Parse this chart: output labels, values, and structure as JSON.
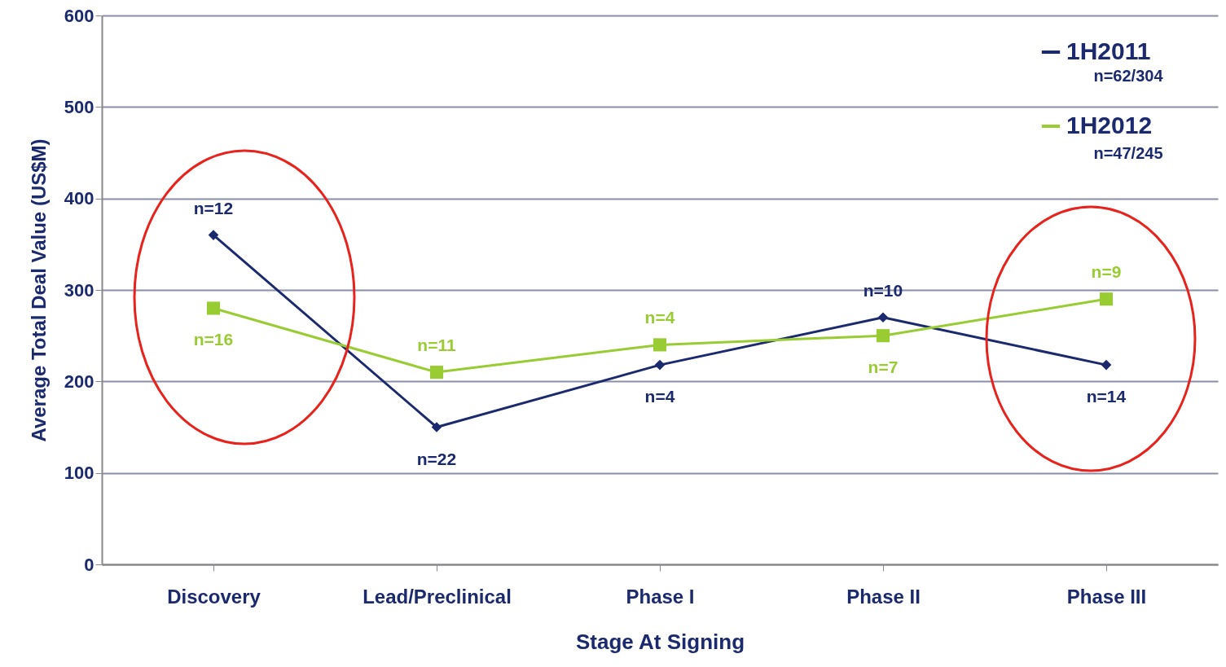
{
  "chart_data": {
    "type": "line",
    "xlabel": "Stage At Signing",
    "ylabel": "Average Total Deal Value (US$M)",
    "categories": [
      "Discovery",
      "Lead/Preclinical",
      "Phase I",
      "Phase II",
      "Phase III"
    ],
    "series": [
      {
        "name": "1H2011",
        "color": "#1b2a6e",
        "marker": "diamond",
        "values": [
          360,
          150,
          218,
          270,
          218
        ]
      },
      {
        "name": "1H2012",
        "color": "#99cc33",
        "marker": "square",
        "values": [
          280,
          210,
          240,
          250,
          290
        ]
      }
    ],
    "ylim": [
      0,
      600
    ],
    "yticks": [
      0,
      100,
      200,
      300,
      400,
      500,
      600
    ],
    "grid": "y",
    "legend": "top right",
    "line_style": "solid",
    "annotations": [
      "n=62/304",
      "n=47/245",
      {
        "text": "n=12",
        "x": "Discovery",
        "y": 360
      },
      {
        "text": "n=16",
        "x": "Discovery",
        "y": 280
      },
      {
        "text": "n=22",
        "x": "Lead/Preclinical",
        "y": 150
      },
      {
        "text": "n=11",
        "x": "Lead/Preclinical",
        "y": 210
      },
      {
        "text": "n=4",
        "x": "Phase I",
        "y": 218
      },
      {
        "text": "n=4",
        "x": "Phase I",
        "y": 240
      },
      {
        "text": "n=10",
        "x": "Phase II",
        "y": 270
      },
      {
        "text": "n=7",
        "x": "Phase II",
        "y": 250
      },
      {
        "text": "n=14",
        "x": "Phase III",
        "y": 218
      },
      {
        "text": "n=9",
        "x": "Phase III",
        "y": 290
      }
    ]
  }
}
